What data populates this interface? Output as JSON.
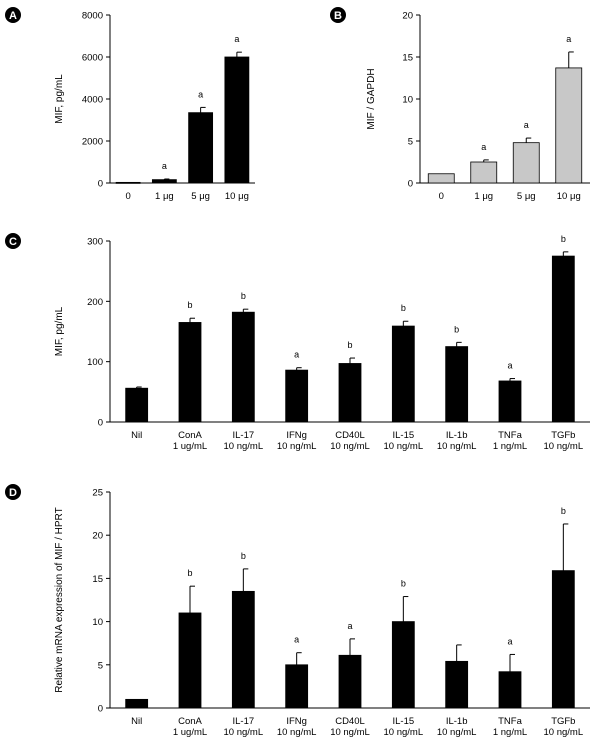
{
  "chart_data": [
    {
      "panel": "A",
      "type": "bar",
      "ylabel": "MIF, pg/mL",
      "ylim": [
        0,
        8000
      ],
      "yticks": [
        0,
        2000,
        4000,
        6000,
        8000
      ],
      "bar_color": "#000000",
      "categories": [
        [
          "0"
        ],
        [
          "1 μg"
        ],
        [
          "5 μg"
        ],
        [
          "10 μg"
        ]
      ],
      "values": [
        30,
        160,
        3350,
        6000
      ],
      "errors": [
        0,
        30,
        250,
        230
      ],
      "annotations": [
        "",
        "a",
        "a",
        "a"
      ]
    },
    {
      "panel": "B",
      "type": "bar",
      "ylabel": "MIF / GAPDH",
      "ylim": [
        0,
        20
      ],
      "yticks": [
        0,
        5,
        10,
        15,
        20
      ],
      "bar_color": "#c8c8c8",
      "categories": [
        [
          "0"
        ],
        [
          "1 μg"
        ],
        [
          "5 μg"
        ],
        [
          "10 μg"
        ]
      ],
      "values": [
        1.1,
        2.5,
        4.8,
        13.7
      ],
      "errors": [
        0,
        0.25,
        0.55,
        1.9
      ],
      "annotations": [
        "",
        "a",
        "a",
        "a"
      ]
    },
    {
      "panel": "C",
      "type": "bar",
      "ylabel": "MIF, pg/mL",
      "ylim": [
        0,
        300
      ],
      "yticks": [
        0,
        100,
        200,
        300
      ],
      "bar_color": "#000000",
      "categories": [
        [
          "Nil"
        ],
        [
          "ConA",
          "1 ug/mL"
        ],
        [
          "IL-17",
          "10 ng/mL"
        ],
        [
          "IFNg",
          "10 ng/mL"
        ],
        [
          "CD40L",
          "10 ng/mL"
        ],
        [
          "IL-15",
          "10 ng/mL"
        ],
        [
          "IL-1b",
          "10 ng/mL"
        ],
        [
          "TNFa",
          "1 ng/mL"
        ],
        [
          "TGFb",
          "10 ng/mL"
        ]
      ],
      "values": [
        56,
        165,
        182,
        86,
        97,
        159,
        125,
        68,
        275
      ],
      "errors": [
        2,
        7,
        5,
        4,
        9,
        8,
        7,
        4,
        7
      ],
      "annotations": [
        "",
        "b",
        "b",
        "a",
        "b",
        "b",
        "b",
        "a",
        "b"
      ]
    },
    {
      "panel": "D",
      "type": "bar",
      "ylabel": "Relative mRNA expression of MIF / HPRT",
      "ylim": [
        0,
        25
      ],
      "yticks": [
        0,
        5,
        10,
        15,
        20,
        25
      ],
      "bar_color": "#000000",
      "categories": [
        [
          "Nil"
        ],
        [
          "ConA",
          "1 ug/mL"
        ],
        [
          "IL-17",
          "10 ng/mL"
        ],
        [
          "IFNg",
          "10 ng/mL"
        ],
        [
          "CD40L",
          "10 ng/mL"
        ],
        [
          "IL-15",
          "10 ng/mL"
        ],
        [
          "IL-1b",
          "10 ng/mL"
        ],
        [
          "TNFa",
          "1 ng/mL"
        ],
        [
          "TGFb",
          "10 ng/mL"
        ]
      ],
      "values": [
        1.0,
        11.0,
        13.5,
        5.0,
        6.1,
        10.0,
        5.4,
        4.2,
        15.9
      ],
      "errors": [
        0,
        3.1,
        2.6,
        1.4,
        1.9,
        2.9,
        1.9,
        2.0,
        5.4
      ],
      "annotations": [
        "",
        "b",
        "b",
        "a",
        "a",
        "b",
        "",
        "a",
        "b"
      ]
    }
  ]
}
